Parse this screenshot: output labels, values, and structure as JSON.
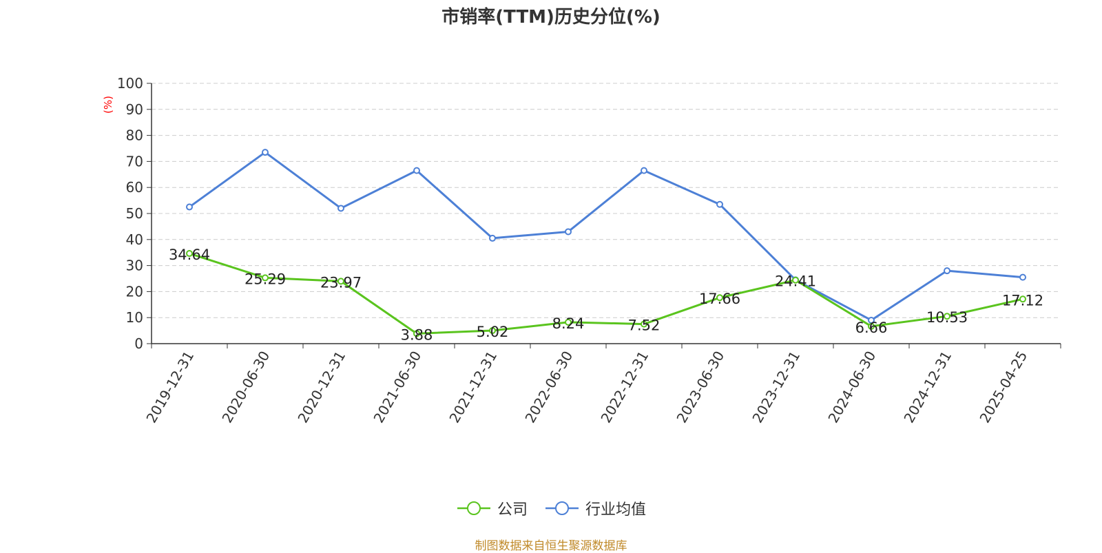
{
  "chart_data": {
    "type": "line",
    "title": "市销率(TTM)历史分位(%)",
    "ylabel": "(%)",
    "xlabel": "",
    "ylim": [
      0,
      100
    ],
    "yticks": [
      0,
      10,
      20,
      30,
      40,
      50,
      60,
      70,
      80,
      90,
      100
    ],
    "grid": true,
    "legend_position": "bottom",
    "categories": [
      "2019-12-31",
      "2020-06-30",
      "2020-12-31",
      "2021-06-30",
      "2021-12-31",
      "2022-06-30",
      "2022-12-31",
      "2023-06-30",
      "2023-12-31",
      "2024-06-30",
      "2024-12-31",
      "2025-04-25"
    ],
    "series": [
      {
        "name": "公司",
        "color": "#5ac41e",
        "values": [
          34.64,
          25.29,
          23.97,
          3.88,
          5.02,
          8.24,
          7.52,
          17.66,
          24.41,
          6.66,
          10.53,
          17.12
        ],
        "labels": [
          "34.64",
          "25.29",
          "23.97",
          "3.88",
          "5.02",
          "8.24",
          "7.52",
          "17.66",
          "24.41",
          "6.66",
          "10.53",
          "17.12"
        ]
      },
      {
        "name": "行业均值",
        "color": "#4d80d6",
        "values": [
          52.5,
          73.5,
          52,
          66.5,
          40.5,
          43,
          66.5,
          53.5,
          24.5,
          9,
          28,
          25.5
        ]
      }
    ]
  },
  "source_note": "制图数据来自恒生聚源数据库"
}
